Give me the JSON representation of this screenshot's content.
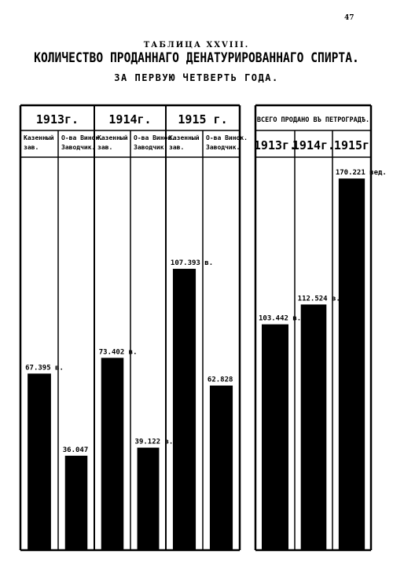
{
  "page_number": "47",
  "table_label": "ТАБЛИЦА XXVIII.",
  "title": "КОЛИЧЕСТВО ПРОДАННАГО ДЕНАТУРИРОВАННАГО СПИРТА.",
  "subtitle": "ЗА ПЕРВУЮ ЧЕТВЕРТЬ ГОДА.",
  "colors": {
    "ink": "#000000",
    "paper": "#ffffff"
  },
  "chart_data": [
    {
      "type": "bar",
      "groups": [
        {
          "year": "1913г.",
          "columns": [
            {
              "label": [
                "Казенный",
                "зав."
              ],
              "value": 67395,
              "value_label": "67.395 в."
            },
            {
              "label": [
                "О-ва Винок.",
                "Заводчик."
              ],
              "value": 36047,
              "value_label": "36.047"
            }
          ]
        },
        {
          "year": "1914г.",
          "columns": [
            {
              "label": [
                "Казенный",
                "зав."
              ],
              "value": 73402,
              "value_label": "73.402 в."
            },
            {
              "label": [
                "О-ва Винок.",
                "Заводчик."
              ],
              "value": 39122,
              "value_label": "39.122 в."
            }
          ]
        },
        {
          "year": "1915 г.",
          "columns": [
            {
              "label": [
                "Казенный",
                "зав."
              ],
              "value": 107393,
              "value_label": "107.393 в."
            },
            {
              "label": [
                "О-ва Винок.",
                "Заводчик."
              ],
              "value": 62828,
              "value_label": "62.828"
            }
          ]
        }
      ],
      "ylim": [
        0,
        150000
      ]
    },
    {
      "type": "bar",
      "header": "ВСЕГО ПРОДАНО ВЪ ПЕТРОГРАДѢ.",
      "categories": [
        "1913г.",
        "1914г.",
        "1915г"
      ],
      "values": [
        103442,
        112524,
        170221
      ],
      "value_labels": [
        "103.442 в.",
        "112.524 в.",
        "170.221 вед."
      ],
      "ylim": [
        0,
        180000
      ]
    }
  ]
}
